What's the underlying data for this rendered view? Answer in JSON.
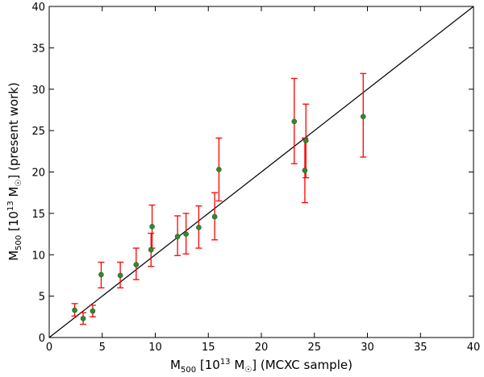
{
  "chart_data": {
    "type": "scatter",
    "xlabel": {
      "prefix": "M",
      "sub": "500",
      "mid1": " [10",
      "sup": "13",
      "mid2": " M",
      "sun": "☉",
      "suffix": "]  (MCXC sample)"
    },
    "ylabel": {
      "prefix": "M",
      "sub": "500",
      "mid1": " [10",
      "sup": "13",
      "mid2": " M",
      "sun": "☉",
      "suffix": "]  (present work)"
    },
    "xlim": [
      0,
      40
    ],
    "ylim": [
      0,
      40
    ],
    "xticks": [
      "0",
      "5",
      "10",
      "15",
      "20",
      "25",
      "30",
      "35",
      "40"
    ],
    "yticks": [
      "0",
      "5",
      "10",
      "15",
      "20",
      "25",
      "30",
      "35",
      "40"
    ],
    "grid": false,
    "reference_line": {
      "from": [
        0,
        0
      ],
      "to": [
        40,
        40
      ],
      "color": "#000000"
    },
    "marker_color": "#2e8b2e",
    "errorbar_color": "#ff0000",
    "points": [
      {
        "x": 2.4,
        "y": 3.3,
        "ylo": 2.6,
        "yhi": 4.1
      },
      {
        "x": 3.2,
        "y": 2.3,
        "ylo": 1.6,
        "yhi": 3.0
      },
      {
        "x": 4.1,
        "y": 3.2,
        "ylo": 2.5,
        "yhi": 3.9
      },
      {
        "x": 4.9,
        "y": 7.6,
        "ylo": 6.0,
        "yhi": 9.1
      },
      {
        "x": 6.7,
        "y": 7.5,
        "ylo": 6.0,
        "yhi": 9.1
      },
      {
        "x": 8.2,
        "y": 8.8,
        "ylo": 7.0,
        "yhi": 10.8
      },
      {
        "x": 9.6,
        "y": 10.6,
        "ylo": 8.6,
        "yhi": 12.6
      },
      {
        "x": 9.7,
        "y": 13.4,
        "ylo": 10.8,
        "yhi": 16.0
      },
      {
        "x": 12.1,
        "y": 12.2,
        "ylo": 9.9,
        "yhi": 14.7
      },
      {
        "x": 12.9,
        "y": 12.5,
        "ylo": 10.1,
        "yhi": 15.0
      },
      {
        "x": 14.1,
        "y": 13.3,
        "ylo": 10.8,
        "yhi": 15.9
      },
      {
        "x": 15.6,
        "y": 14.6,
        "ylo": 11.8,
        "yhi": 17.5
      },
      {
        "x": 16.0,
        "y": 20.3,
        "ylo": 16.5,
        "yhi": 24.1
      },
      {
        "x": 23.1,
        "y": 26.1,
        "ylo": 21.0,
        "yhi": 31.3
      },
      {
        "x": 24.1,
        "y": 20.2,
        "ylo": 16.3,
        "yhi": 24.1
      },
      {
        "x": 24.2,
        "y": 23.8,
        "ylo": 19.3,
        "yhi": 28.2
      },
      {
        "x": 29.6,
        "y": 26.7,
        "ylo": 21.8,
        "yhi": 31.9
      }
    ]
  }
}
